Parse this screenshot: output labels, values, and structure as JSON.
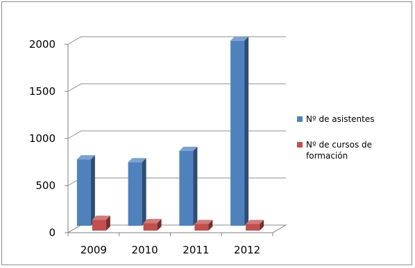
{
  "chart_data": {
    "type": "bar",
    "style": "3d-clustered-column",
    "categories": [
      "2009",
      "2010",
      "2011",
      "2012"
    ],
    "series": [
      {
        "name": "Nº de asistentes",
        "values": [
          705,
          675,
          795,
          1965
        ],
        "color": "#4f81bd"
      },
      {
        "name": "Nº de cursos de formación",
        "values": [
          115,
          80,
          70,
          70
        ],
        "color": "#c0504d"
      }
    ],
    "ylim": [
      0,
      2000
    ],
    "yticks": [
      "0",
      "500",
      "1000",
      "1500",
      "2000"
    ],
    "grid": true,
    "legend_position": "right"
  }
}
